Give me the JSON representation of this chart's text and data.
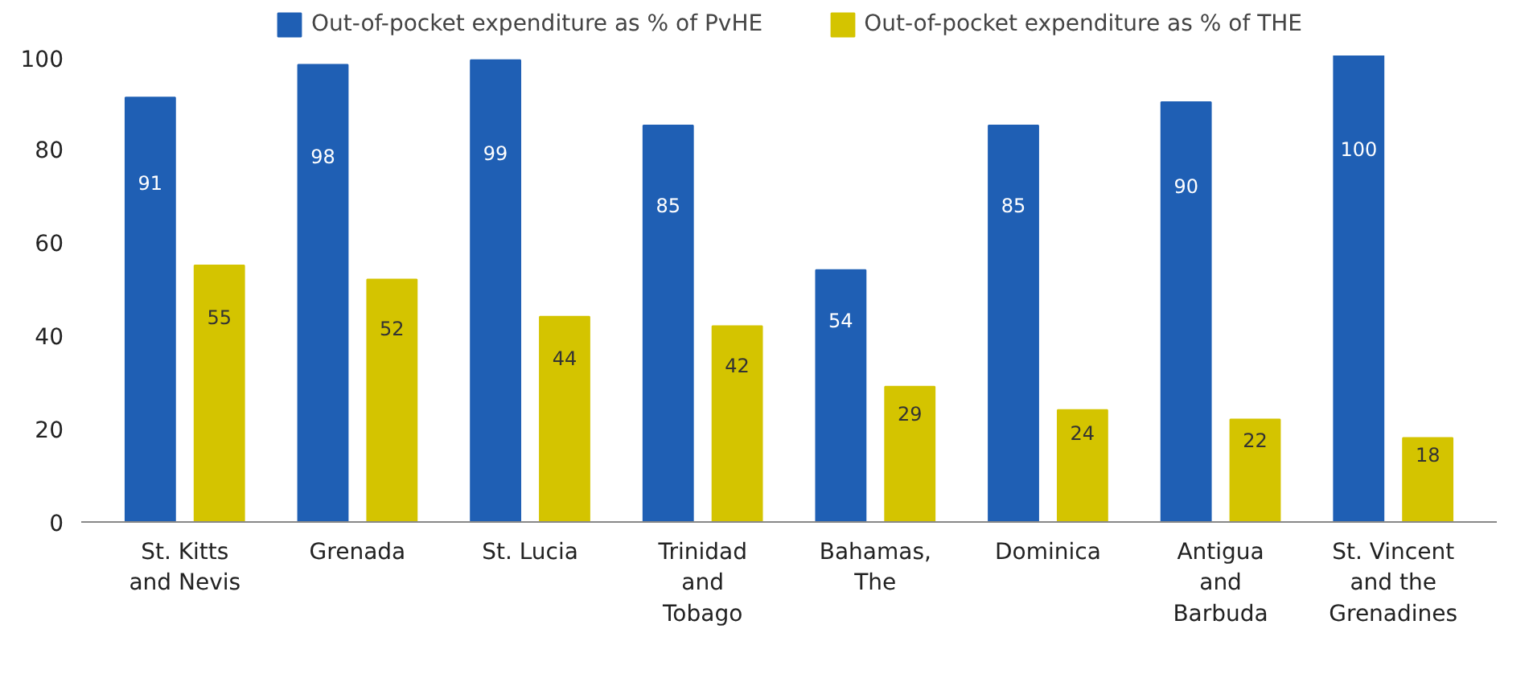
{
  "chart_data": {
    "type": "bar",
    "categories": [
      "St. Kitts\nand Nevis",
      "Grenada",
      "St. Lucia",
      "Trinidad\nand\nTobago",
      "Bahamas,\nThe",
      "Dominica",
      "Antigua\nand\nBarbuda",
      "St. Vincent\nand the\nGrenadines"
    ],
    "series": [
      {
        "name": "Out-of-pocket expenditure as % of PvHE",
        "color": "#1f5fb4",
        "values": [
          91,
          98,
          99,
          85,
          54,
          85,
          90,
          100
        ]
      },
      {
        "name": "Out-of-pocket expenditure as % of THE",
        "color": "#d4c400",
        "values": [
          55,
          52,
          44,
          42,
          29,
          24,
          22,
          18
        ]
      }
    ],
    "ylim": [
      0,
      100
    ],
    "yticks": [
      0,
      20,
      40,
      60,
      80,
      100
    ],
    "grid": false,
    "legend": "top",
    "data_labels": true
  }
}
